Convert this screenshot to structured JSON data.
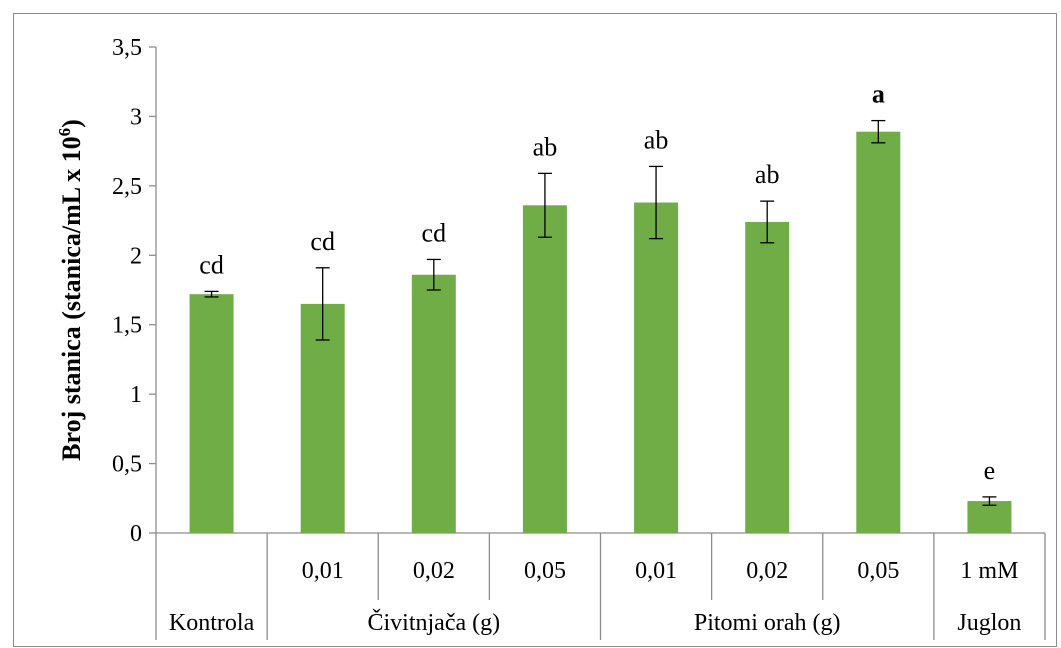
{
  "chart_data": {
    "type": "bar",
    "ylabel": "Broj stanica (stanica/mL x 10",
    "ylabel_sup": "6",
    "ylabel_end": ")",
    "ylim": [
      0,
      3.5
    ],
    "yticks": [
      "0",
      "0,5",
      "1",
      "1,5",
      "2",
      "2,5",
      "3",
      "3,5"
    ],
    "ytick_values": [
      0,
      0.5,
      1,
      1.5,
      2,
      2.5,
      3,
      3.5
    ],
    "grid": false,
    "bar_color": "#70ad47",
    "bars": [
      {
        "sub": "",
        "group": "Kontrola",
        "value": 1.72,
        "err": 0.02,
        "sig": "cd",
        "sig_bold": false
      },
      {
        "sub": "0,01",
        "group": "Čivitnjača (g)",
        "value": 1.65,
        "err": 0.26,
        "sig": "cd",
        "sig_bold": false
      },
      {
        "sub": "0,02",
        "group": "Čivitnjača (g)",
        "value": 1.86,
        "err": 0.11,
        "sig": "cd",
        "sig_bold": false
      },
      {
        "sub": "0,05",
        "group": "Čivitnjača (g)",
        "value": 2.36,
        "err": 0.23,
        "sig": "ab",
        "sig_bold": false
      },
      {
        "sub": "0,01",
        "group": "Pitomi orah (g)",
        "value": 2.38,
        "err": 0.26,
        "sig": "ab",
        "sig_bold": false
      },
      {
        "sub": "0,02",
        "group": "Pitomi orah (g)",
        "value": 2.24,
        "err": 0.15,
        "sig": "ab",
        "sig_bold": false
      },
      {
        "sub": "0,05",
        "group": "Pitomi orah (g)",
        "value": 2.89,
        "err": 0.08,
        "sig": "a",
        "sig_bold": true
      },
      {
        "sub": "1 mM",
        "group": "Juglon",
        "value": 0.23,
        "err": 0.03,
        "sig": "e",
        "sig_bold": false
      }
    ],
    "groups": [
      {
        "label": "Kontrola",
        "start": 0,
        "end": 0
      },
      {
        "label": "Čivitnjača (g)",
        "start": 1,
        "end": 3
      },
      {
        "label": "Pitomi orah (g)",
        "start": 4,
        "end": 6
      },
      {
        "label": "Juglon",
        "start": 7,
        "end": 7
      }
    ]
  }
}
